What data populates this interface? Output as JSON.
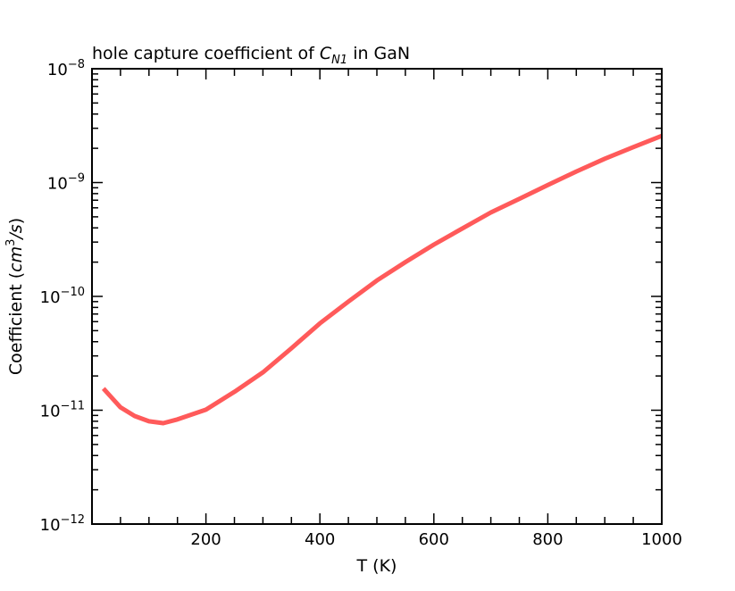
{
  "chart_data": {
    "type": "line",
    "title": "hole capture coefficient of C_N1 in GaN",
    "title_parts": {
      "prefix": "hole capture coefficient of ",
      "symbol": "C",
      "subscript": "N1",
      "suffix": " in GaN"
    },
    "xlabel": "T (K)",
    "xlabel_parts": {
      "text": "T (",
      "unit": "K",
      "close": ")"
    },
    "ylabel": "Coefficient (cm^3/s)",
    "ylabel_parts": {
      "text": "Coefficient (",
      "unit": "cm",
      "exp": "3",
      "rest": "/s",
      "close": ")"
    },
    "xlim": [
      0,
      1000
    ],
    "ylim": [
      1e-12,
      1e-08
    ],
    "yscale": "log",
    "x_ticks": [
      200,
      400,
      600,
      800,
      1000
    ],
    "x_tick_labels": [
      "200",
      "400",
      "600",
      "800",
      "1000"
    ],
    "y_ticks": [
      1e-12,
      1e-11,
      1e-10,
      1e-09,
      1e-08
    ],
    "y_tick_labels": [
      {
        "base": "10",
        "exp": "−12"
      },
      {
        "base": "10",
        "exp": "−11"
      },
      {
        "base": "10",
        "exp": "−10"
      },
      {
        "base": "10",
        "exp": "−9"
      },
      {
        "base": "10",
        "exp": "−8"
      }
    ],
    "grid": false,
    "series": [
      {
        "color": "#ff5a5a",
        "x": [
          20,
          50,
          75,
          100,
          125,
          150,
          200,
          250,
          300,
          350,
          400,
          450,
          500,
          550,
          600,
          650,
          700,
          750,
          800,
          850,
          900,
          950,
          1000
        ],
        "y": [
          1.55e-11,
          1.06e-11,
          8.9e-12,
          8e-12,
          7.7e-12,
          8.3e-12,
          1.01e-11,
          1.45e-11,
          2.15e-11,
          3.5e-11,
          5.8e-11,
          9e-11,
          1.38e-10,
          2e-10,
          2.85e-10,
          3.95e-10,
          5.46e-10,
          7.2e-10,
          9.5e-10,
          1.25e-09,
          1.62e-09,
          2.05e-09,
          2.57e-09
        ]
      }
    ]
  }
}
